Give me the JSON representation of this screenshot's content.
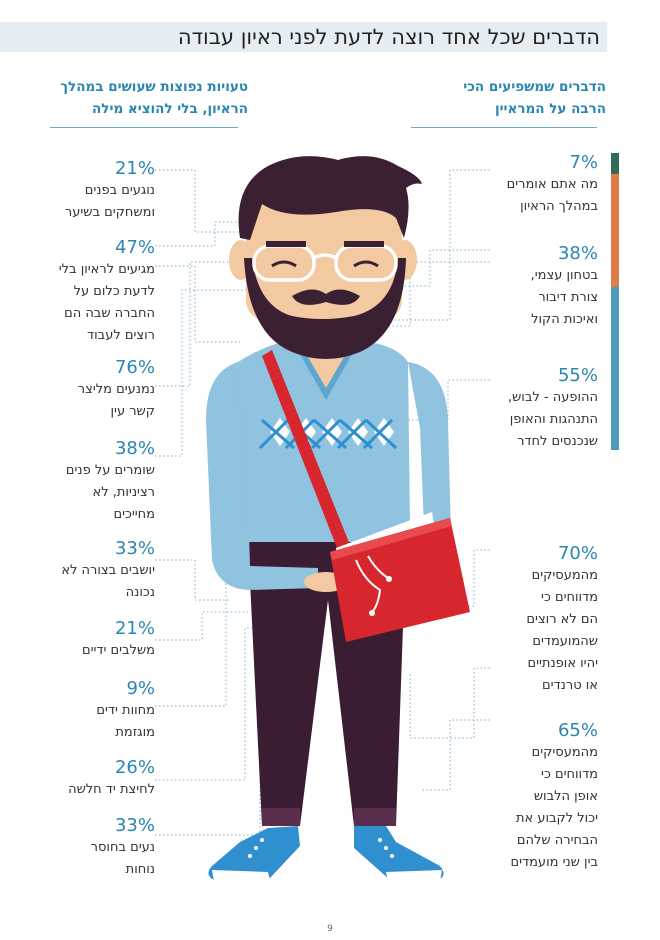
{
  "title": "הדברים שכל אחד רוצה לדעת לפני ראיון עבודה",
  "right_column": {
    "heading": [
      "הדברים שמשפיעים הכי",
      "הרבה על המראיין"
    ],
    "items": [
      {
        "pct": "7%",
        "lines": [
          "מה אתם אומרים",
          "במהלך הראיון"
        ]
      },
      {
        "pct": "38%",
        "lines": [
          "בטחון עצמי,",
          "צורת דיבור",
          "ואיכות הקול"
        ]
      },
      {
        "pct": "55%",
        "lines": [
          "ההופעה - לבוש,",
          "התנהגות והאופן",
          "שנכנסים לחדר"
        ]
      },
      {
        "pct": "70%",
        "lines": [
          "מהמעסיקים",
          "מדווחים כי",
          "הם לא רוצים",
          "שהמועמדים",
          "יהיו אופנתיים",
          "או טרנדים"
        ]
      },
      {
        "pct": "65%",
        "lines": [
          "מהמעסיקים",
          "מדווחים כי",
          "אופן הלבוש",
          "יכול לקבוע את",
          "הבחירה שלהם",
          "בין שני מועמדים"
        ]
      }
    ]
  },
  "left_column": {
    "heading": [
      "טעויות נפוצות שעושים במהלך",
      "הראיון, בלי להוציא מילה"
    ],
    "items": [
      {
        "pct": "21%",
        "lines": [
          "נוגעים בפנים",
          "ומשחקים בשיער"
        ]
      },
      {
        "pct": "47%",
        "lines": [
          "מגיעים לראיון בלי",
          "לדעת כלום על",
          "החברה שבה הם",
          "רוצים לעבוד"
        ]
      },
      {
        "pct": "76%",
        "lines": [
          "נמנעים מליצר",
          "קשר עין"
        ]
      },
      {
        "pct": "38%",
        "lines": [
          "שומרים על פנים",
          "רציניות, לא",
          "מחייכים"
        ]
      },
      {
        "pct": "33%",
        "lines": [
          "יושבים בצורה לא",
          "נכונה"
        ]
      },
      {
        "pct": "21%",
        "lines": [
          "משלבים ידיים"
        ]
      },
      {
        "pct": "9%",
        "lines": [
          "מחוות ידים",
          "מוגזמת"
        ]
      },
      {
        "pct": "26%",
        "lines": [
          "לחיצת יד חלשה"
        ]
      },
      {
        "pct": "33%",
        "lines": [
          "נעים בחוסר",
          "נוחות"
        ]
      }
    ]
  },
  "side_bar": [
    {
      "share": 7,
      "color": "#2f6b55"
    },
    {
      "share": 38,
      "color": "#e07b4a"
    },
    {
      "share": 55,
      "color": "#4d9bb8"
    }
  ],
  "page_number": "9",
  "colors": {
    "accent": "#2b86b1",
    "hair": "#3b1f33",
    "skin": "#f2c9a0",
    "sweater": "#8fc3e0",
    "bag": "#d8262e",
    "pants": "#3a1c33",
    "shoes": "#2f8fcf"
  }
}
